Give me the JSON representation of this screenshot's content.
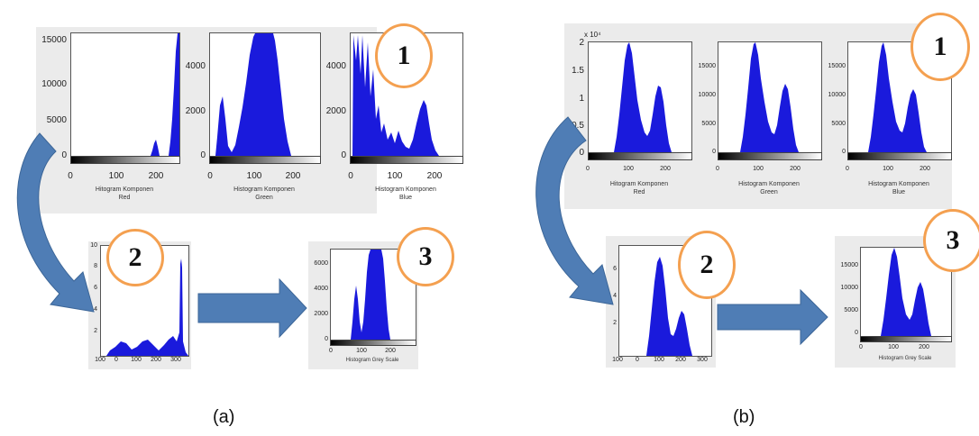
{
  "figure_a": {
    "label": "(a)",
    "step1": {
      "badge": "1",
      "plots": [
        {
          "ticks_y": [
            "15000",
            "10000",
            "5000",
            "0"
          ],
          "ticks_x": [
            "0",
            "100",
            "200"
          ],
          "caption1": "Hitogram Komponen",
          "caption2": "Red"
        },
        {
          "ticks_y": [
            "4000",
            "2000",
            "0"
          ],
          "ticks_x": [
            "0",
            "100",
            "200"
          ],
          "caption1": "Histogram Komponen",
          "caption2": "Green"
        },
        {
          "ticks_y": [
            "4000",
            "2000",
            "0"
          ],
          "ticks_x": [
            "0",
            "100",
            "200"
          ],
          "caption1": "Histogram Komponen",
          "caption2": "Blue"
        }
      ]
    },
    "step2": {
      "badge": "2",
      "ticks_y": [
        "10",
        "8",
        "6",
        "4",
        "2"
      ],
      "ticks_x": [
        "100",
        "0",
        "100",
        "200",
        "300"
      ]
    },
    "step3": {
      "badge": "3",
      "ticks_y": [
        "6000",
        "4000",
        "2000",
        "0"
      ],
      "ticks_x": [
        "0",
        "100",
        "200"
      ],
      "caption": "Histogram Grey Scale"
    }
  },
  "figure_b": {
    "label": "(b)",
    "step1": {
      "badge": "1",
      "exponent": "x 10⁴",
      "plots": [
        {
          "ticks_y": [
            "2",
            "1.5",
            "1",
            "0.5",
            "0"
          ],
          "ticks_x": [
            "0",
            "100",
            "200"
          ],
          "caption1": "Hitogram Komponen",
          "caption2": "Red"
        },
        {
          "ticks_y": [
            "15000",
            "10000",
            "5000",
            "0"
          ],
          "ticks_x": [
            "0",
            "100",
            "200"
          ],
          "caption1": "Histogram Komponen",
          "caption2": "Green"
        },
        {
          "ticks_y": [
            "15000",
            "10000",
            "5000",
            "0"
          ],
          "ticks_x": [
            "0",
            "100",
            "200"
          ],
          "caption1": "Histogram Komponen",
          "caption2": "Blue"
        }
      ]
    },
    "step2": {
      "badge": "2",
      "ticks_y": [
        "6",
        "4",
        "2"
      ],
      "ticks_x": [
        "100",
        "0",
        "100",
        "200",
        "300"
      ]
    },
    "step3": {
      "badge": "3",
      "ticks_y": [
        "15000",
        "10000",
        "5000",
        "0"
      ],
      "ticks_x": [
        "0",
        "100",
        "200"
      ],
      "caption": "Histogram Grey Scale"
    }
  },
  "colors": {
    "histogram": "#1a1adc",
    "arrow": "#4f7db5",
    "badge_border": "#f4a050"
  }
}
